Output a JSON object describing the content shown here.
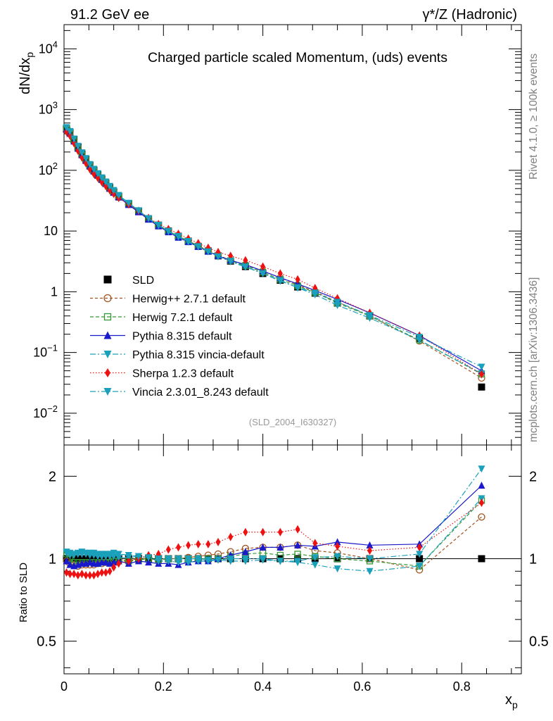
{
  "header": {
    "left": "91.2 GeV ee",
    "right": "γ*/Z (Hadronic)"
  },
  "side_text": {
    "rivet": "Rivet 4.1.0, ≥ 100k events",
    "mcplots": "mcplots.cern.ch [arXiv:1306.3436]"
  },
  "chart_data": [
    {
      "type": "scatter",
      "panel": "main",
      "title": "Charged particle scaled Momentum, (uds) events",
      "analysis_tag": "(SLD_2004_I630327)",
      "xlabel": "x_p",
      "ylabel": "dN/dx_p",
      "yscale": "log",
      "xlim": [
        0,
        0.92
      ],
      "ylim": [
        0.003,
        25000
      ],
      "y_ticks": [
        {
          "value": 0.01,
          "label": "10^-2"
        },
        {
          "value": 0.1,
          "label": "10^-1"
        },
        {
          "value": 1,
          "label": "1"
        },
        {
          "value": 10,
          "label": "10"
        },
        {
          "value": 100,
          "label": "10^2"
        },
        {
          "value": 1000,
          "label": "10^3"
        },
        {
          "value": 10000,
          "label": "10^4"
        }
      ],
      "x": [
        0.005,
        0.012,
        0.02,
        0.028,
        0.036,
        0.044,
        0.052,
        0.06,
        0.068,
        0.076,
        0.084,
        0.092,
        0.1,
        0.11,
        0.13,
        0.15,
        0.17,
        0.19,
        0.21,
        0.23,
        0.25,
        0.27,
        0.29,
        0.31,
        0.335,
        0.365,
        0.4,
        0.435,
        0.47,
        0.505,
        0.55,
        0.615,
        0.715,
        0.84
      ],
      "series": [
        {
          "name": "SLD",
          "style": "data",
          "values": [
            480,
            420,
            320,
            240,
            185,
            150,
            120,
            100,
            85,
            72,
            62,
            52,
            44,
            37,
            28,
            21,
            16,
            12.5,
            10,
            8.2,
            6.8,
            5.6,
            4.7,
            3.9,
            3.2,
            2.6,
            2.0,
            1.55,
            1.2,
            0.95,
            0.65,
            0.4,
            0.17,
            0.027
          ]
        },
        {
          "name": "Herwig++ 2.7.1 default",
          "style": "herwigpp",
          "values": [
            470,
            400,
            300,
            225,
            175,
            142,
            114,
            95,
            81,
            69,
            60,
            50,
            43,
            36,
            27.5,
            21,
            16,
            12.3,
            10,
            8.2,
            6.9,
            5.7,
            4.8,
            4.0,
            3.3,
            2.8,
            2.2,
            1.7,
            1.3,
            1.0,
            0.68,
            0.4,
            0.155,
            0.038
          ]
        },
        {
          "name": "Herwig 7.2.1 default",
          "style": "herwig7",
          "values": [
            500,
            420,
            310,
            232,
            180,
            146,
            117,
            97,
            82,
            70,
            60,
            50,
            43,
            36,
            27.5,
            21,
            16,
            12.4,
            10,
            8.2,
            6.8,
            5.6,
            4.7,
            3.9,
            3.25,
            2.7,
            2.1,
            1.6,
            1.25,
            0.97,
            0.65,
            0.4,
            0.16,
            0.044
          ]
        },
        {
          "name": "Pythia 8.315 default",
          "style": "pythia",
          "values": [
            470,
            400,
            300,
            228,
            178,
            144,
            116,
            96,
            82,
            70,
            60,
            50,
            43,
            36,
            27,
            20.5,
            15.5,
            12,
            9.6,
            7.8,
            6.6,
            5.5,
            4.6,
            3.9,
            3.3,
            2.8,
            2.2,
            1.7,
            1.35,
            1.05,
            0.75,
            0.45,
            0.19,
            0.05
          ]
        },
        {
          "name": "Pythia 8.315 vincia-default",
          "style": "pythia_vincia",
          "values": [
            510,
            430,
            330,
            250,
            193,
            156,
            124,
            103,
            87,
            74,
            63,
            53,
            45,
            37.5,
            28.5,
            21.5,
            16,
            12.3,
            9.8,
            8.0,
            6.6,
            5.5,
            4.6,
            3.85,
            3.15,
            2.55,
            2.0,
            1.55,
            1.16,
            0.9,
            0.6,
            0.37,
            0.16,
            0.045
          ]
        },
        {
          "name": "Sherpa 1.2.3 default",
          "style": "sherpa",
          "values": [
            430,
            370,
            280,
            210,
            162,
            131,
            104,
            87,
            75,
            64,
            55,
            47,
            41,
            35,
            27.5,
            21.5,
            16.5,
            13,
            10.8,
            9.0,
            7.5,
            6.3,
            5.3,
            4.5,
            3.9,
            3.3,
            2.6,
            2.0,
            1.6,
            1.15,
            0.78,
            0.45,
            0.19,
            0.044
          ]
        },
        {
          "name": "Vincia 2.3.01_8.243 default",
          "style": "vincia",
          "values": [
            505,
            440,
            330,
            252,
            196,
            158,
            126,
            105,
            89,
            76,
            65,
            55,
            47,
            39,
            29,
            21.8,
            16.2,
            12.6,
            10,
            8.2,
            6.8,
            5.6,
            4.6,
            3.8,
            3.2,
            2.6,
            2.0,
            1.5,
            1.18,
            0.96,
            0.68,
            0.41,
            0.18,
            0.058
          ]
        }
      ]
    },
    {
      "type": "scatter",
      "panel": "ratio",
      "ylabel": "Ratio to SLD",
      "xlabel": "x_p",
      "yscale": "log",
      "xlim": [
        0,
        0.92
      ],
      "ylim": [
        0.38,
        2.6
      ],
      "x_ticks": [
        {
          "value": 0,
          "label": "0"
        },
        {
          "value": 0.2,
          "label": "0.2"
        },
        {
          "value": 0.4,
          "label": "0.4"
        },
        {
          "value": 0.6,
          "label": "0.6"
        },
        {
          "value": 0.8,
          "label": "0.8"
        }
      ],
      "y_ticks": [
        {
          "value": 0.5,
          "label": "0.5"
        },
        {
          "value": 1,
          "label": "1"
        },
        {
          "value": 2,
          "label": "2"
        }
      ],
      "x": [
        0.005,
        0.012,
        0.02,
        0.028,
        0.036,
        0.044,
        0.052,
        0.06,
        0.068,
        0.076,
        0.084,
        0.092,
        0.1,
        0.11,
        0.13,
        0.15,
        0.17,
        0.19,
        0.21,
        0.23,
        0.25,
        0.27,
        0.29,
        0.31,
        0.335,
        0.365,
        0.4,
        0.435,
        0.47,
        0.505,
        0.55,
        0.615,
        0.715,
        0.84
      ],
      "series": [
        {
          "name": "SLD",
          "style": "data",
          "values": [
            1,
            1,
            1,
            1,
            1,
            1,
            1,
            1,
            1,
            1,
            1,
            1,
            1,
            1,
            1,
            1,
            1,
            1,
            1,
            1,
            1,
            1,
            1,
            1,
            1,
            1,
            1,
            1,
            1,
            1,
            1,
            1,
            1,
            1
          ]
        },
        {
          "name": "Herwig++ 2.7.1 default",
          "style": "herwigpp",
          "values": [
            0.98,
            0.96,
            0.95,
            0.94,
            0.95,
            0.95,
            0.95,
            0.95,
            0.96,
            0.96,
            0.97,
            0.97,
            0.98,
            0.98,
            0.99,
            1.0,
            1.0,
            0.99,
            1.0,
            1.0,
            1.01,
            1.02,
            1.03,
            1.04,
            1.06,
            1.09,
            1.1,
            1.1,
            1.12,
            1.07,
            1.05,
            1.0,
            0.91,
            1.42
          ]
        },
        {
          "name": "Herwig 7.2.1 default",
          "style": "herwig7",
          "values": [
            1.04,
            1.0,
            0.97,
            0.97,
            0.97,
            0.97,
            0.97,
            0.97,
            0.96,
            0.97,
            0.97,
            0.97,
            0.98,
            0.98,
            0.98,
            0.99,
            1.0,
            0.99,
            1.0,
            1.0,
            1.0,
            1.0,
            1.0,
            1.0,
            1.02,
            1.04,
            1.05,
            1.03,
            1.04,
            1.02,
            1.0,
            0.98,
            0.94,
            1.63
          ]
        },
        {
          "name": "Pythia 8.315 default",
          "style": "pythia",
          "values": [
            0.98,
            0.95,
            0.94,
            0.95,
            0.96,
            0.96,
            0.97,
            0.96,
            0.96,
            0.97,
            0.97,
            0.96,
            0.97,
            0.98,
            0.96,
            0.98,
            0.97,
            0.96,
            0.96,
            0.95,
            0.97,
            0.98,
            0.98,
            1.0,
            1.03,
            1.06,
            1.1,
            1.1,
            1.12,
            1.11,
            1.15,
            1.12,
            1.13,
            1.85
          ]
        },
        {
          "name": "Pythia 8.315 vincia-default",
          "style": "pythia_vincia",
          "values": [
            1.06,
            1.03,
            1.03,
            1.04,
            1.04,
            1.04,
            1.03,
            1.03,
            1.02,
            1.02,
            1.02,
            1.02,
            1.02,
            1.01,
            1.01,
            1.02,
            1.01,
            0.98,
            0.98,
            0.97,
            0.97,
            0.98,
            0.98,
            0.99,
            0.98,
            0.98,
            0.99,
            0.98,
            0.97,
            0.95,
            0.92,
            0.9,
            0.94,
            1.66
          ]
        },
        {
          "name": "Sherpa 1.2.3 default",
          "style": "sherpa",
          "values": [
            0.89,
            0.88,
            0.88,
            0.87,
            0.88,
            0.87,
            0.87,
            0.87,
            0.88,
            0.89,
            0.89,
            0.9,
            0.93,
            0.96,
            0.98,
            1.0,
            1.03,
            1.04,
            1.08,
            1.1,
            1.12,
            1.13,
            1.13,
            1.15,
            1.2,
            1.25,
            1.25,
            1.25,
            1.28,
            1.14,
            1.11,
            1.07,
            1.1,
            1.6
          ]
        },
        {
          "name": "Vincia 2.3.01_8.243 default",
          "style": "vincia",
          "values": [
            1.05,
            1.05,
            1.04,
            1.05,
            1.06,
            1.05,
            1.05,
            1.05,
            1.04,
            1.04,
            1.04,
            1.04,
            1.05,
            1.04,
            1.03,
            1.02,
            1.01,
            1.0,
            1.0,
            1.0,
            1.0,
            1.0,
            0.99,
            0.99,
            1.0,
            1.0,
            1.0,
            0.98,
            0.98,
            1.01,
            1.02,
            1.0,
            1.04,
            2.13
          ]
        }
      ]
    }
  ],
  "legend": [
    {
      "label": "SLD",
      "style": "data"
    },
    {
      "label": "Herwig++ 2.7.1 default",
      "style": "herwigpp"
    },
    {
      "label": "Herwig 7.2.1 default",
      "style": "herwig7"
    },
    {
      "label": "Pythia 8.315 default",
      "style": "pythia"
    },
    {
      "label": "Pythia 8.315 vincia-default",
      "style": "pythia_vincia"
    },
    {
      "label": "Sherpa 1.2.3 default",
      "style": "sherpa"
    },
    {
      "label": "Vincia 2.3.01_8.243 default",
      "style": "vincia"
    }
  ],
  "styles": {
    "data": {
      "color": "#000000",
      "marker": "square-filled",
      "dash": "none"
    },
    "herwigpp": {
      "color": "#a0521f",
      "marker": "circle-open",
      "dash": "4,3"
    },
    "herwig7": {
      "color": "#339933",
      "marker": "square-open",
      "dash": "5,3"
    },
    "pythia": {
      "color": "#1a1acc",
      "marker": "triangle-up",
      "dash": "none"
    },
    "pythia_vincia": {
      "color": "#1aa0bb",
      "marker": "triangle-down",
      "dash": "8,3,2,3"
    },
    "sherpa": {
      "color": "#ee1111",
      "marker": "diamond",
      "dash": "1.5,2.5"
    },
    "vincia": {
      "color": "#1aa0bb",
      "marker": "triangle-down",
      "dash": "8,3,2,3"
    }
  }
}
